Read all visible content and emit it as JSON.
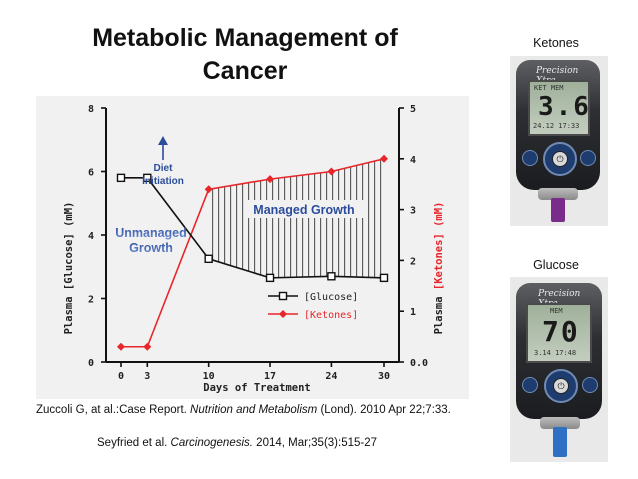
{
  "slide": {
    "title_line1": "Metabolic Management of",
    "title_line2": "Cancer",
    "caption1_pre": "Zuccoli G, at al.:Case Report. ",
    "caption1_journal": "Nutrition and Metabolism",
    "caption1_post": " (Lond). 2010 Apr 22;7:33.",
    "caption2_pre": "Seyfried et al. ",
    "caption2_journal": "Carcinogenesis.",
    "caption2_post": " 2014, Mar;35(3):515-27"
  },
  "photos": {
    "ketones_label": "Ketones",
    "glucose_label": "Glucose",
    "ketones_meter": {
      "brand": "Precision Xtra",
      "mode": "KET MEM",
      "reading": "3.6",
      "date": "24.12 17:33"
    },
    "glucose_meter": {
      "brand": "Precision Xtra",
      "mode": "MEM",
      "reading": "70",
      "date": "3.14 17:48"
    }
  },
  "chart_data": {
    "type": "line",
    "xlabel": "Days of Treatment",
    "categories": [
      "0",
      "3",
      "10",
      "17",
      "24",
      "30"
    ],
    "series": [
      {
        "name": "[Glucose]",
        "axis": "left",
        "color": "#111111",
        "marker": "square",
        "values": [
          5.8,
          5.8,
          3.25,
          2.65,
          2.7,
          2.65
        ]
      },
      {
        "name": "[Ketones]",
        "axis": "right",
        "color": "#e8262a",
        "marker": "diamond",
        "values": [
          0.3,
          0.3,
          3.4,
          3.6,
          3.75,
          4.0
        ]
      }
    ],
    "y_left": {
      "label_main": "Plasma",
      "label_unit": "[Glucose] (mM)",
      "ylim": [
        0,
        8
      ],
      "ticks": [
        0,
        2,
        4,
        6,
        8
      ]
    },
    "y_right": {
      "label_main": "Plasma",
      "label_unit": "[Ketones] (mM)",
      "ylim": [
        0,
        5
      ],
      "ticks": [
        "0.0",
        "1",
        "2",
        "3",
        "4",
        "5"
      ]
    },
    "annotations": {
      "diet_line1": "Diet",
      "diet_line2": "Initiation",
      "unmanaged_line1": "Unmanaged",
      "unmanaged_line2": "Growth",
      "managed": "Managed Growth"
    },
    "legend_position": "lower-right"
  }
}
